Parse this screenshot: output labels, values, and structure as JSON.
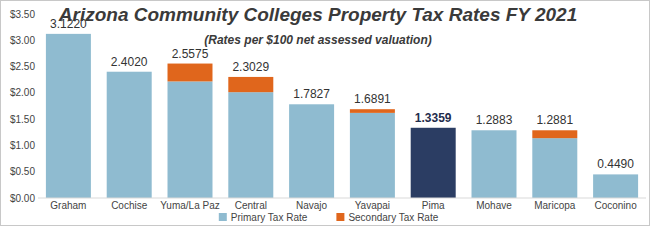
{
  "chart_data": {
    "type": "bar",
    "title": "Arizona Community Colleges Property Tax Rates FY 2021",
    "subtitle": "(Rates per $100 net assessed valuation)",
    "categories": [
      "Graham",
      "Cochise",
      "Yuma/La Paz",
      "Central",
      "Navajo",
      "Yavapai",
      "Pima",
      "Mohave",
      "Maricopa",
      "Coconino"
    ],
    "stacked": true,
    "series": [
      {
        "name": "Primary Tax Rate",
        "color": "#8fbbd0",
        "colors": [
          "#8fbbd0",
          "#8fbbd0",
          "#8fbbd0",
          "#8fbbd0",
          "#8fbbd0",
          "#8fbbd0",
          "#2b3d63",
          "#8fbbd0",
          "#8fbbd0",
          "#8fbbd0"
        ],
        "values": [
          3.122,
          2.402,
          2.2175,
          2.0129,
          1.7827,
          1.6191,
          1.3359,
          1.2883,
          1.1381,
          0.449
        ]
      },
      {
        "name": "Secondary Tax Rate",
        "color": "#e0661c",
        "values": [
          0,
          0,
          0.34,
          0.29,
          0,
          0.07,
          0,
          0,
          0.15,
          0
        ]
      }
    ],
    "totals": [
      3.122,
      2.402,
      2.5575,
      2.3029,
      1.7827,
      1.6891,
      1.3359,
      1.2883,
      1.2881,
      0.449
    ],
    "total_labels": [
      "3.1220",
      "2.4020",
      "2.5575",
      "2.3029",
      "1.7827",
      "1.6891",
      "1.3359",
      "1.2883",
      "1.2881",
      "0.4490"
    ],
    "ylim": [
      0,
      3.5
    ],
    "yticks": [
      {
        "value": 0,
        "label": "$0.00"
      },
      {
        "value": 0.5,
        "label": "$0.50"
      },
      {
        "value": 1,
        "label": "$1.00"
      },
      {
        "value": 1.5,
        "label": "$1.50"
      },
      {
        "value": 2,
        "label": "$2.00"
      },
      {
        "value": 2.5,
        "label": "$2.50"
      },
      {
        "value": 3,
        "label": "$3.00"
      },
      {
        "value": 3.5,
        "label": "$3.50"
      }
    ],
    "grid": false,
    "legend": "bottom"
  }
}
